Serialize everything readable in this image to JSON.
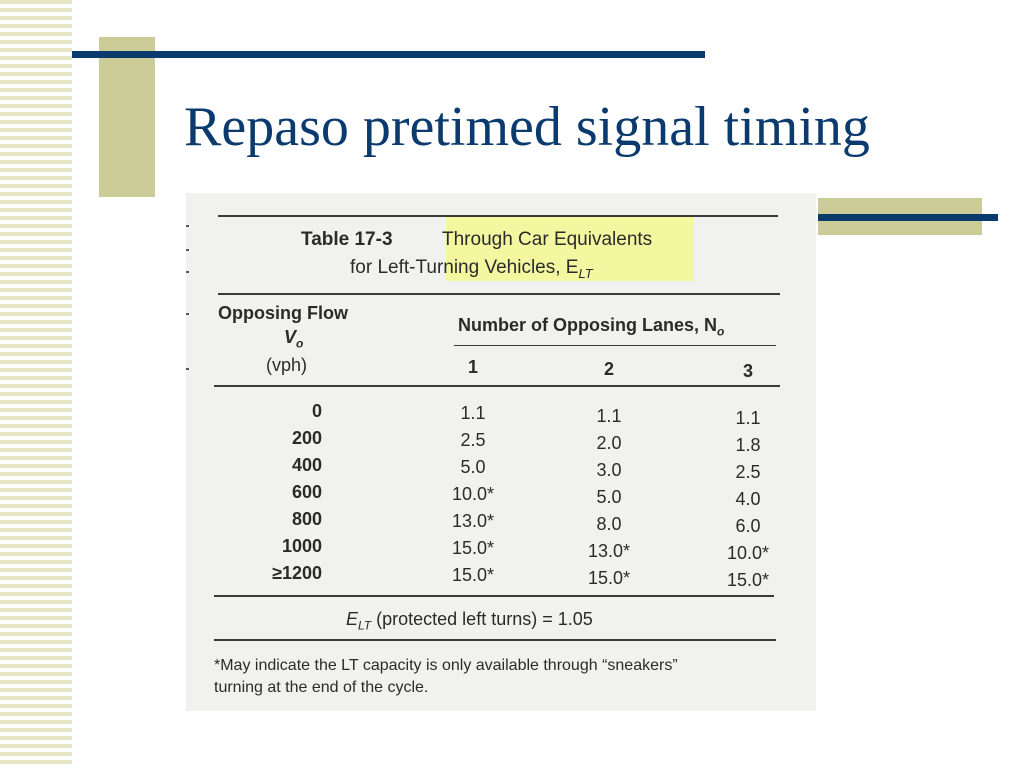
{
  "slide": {
    "title": "Repaso pretimed signal timing"
  },
  "table": {
    "number": "Table 17-3",
    "caption_line1": "Through Car Equivalents",
    "caption_line2": "for Left-Turning Vehicles, E",
    "caption_sub": "LT",
    "flow_header_line1": "Opposing Flow",
    "flow_header_line2": "V",
    "flow_header_sub": "o",
    "flow_header_line3": "(vph)",
    "lanes_header": "Number of Opposing Lanes, N",
    "lanes_header_sub": "o",
    "lane_columns": [
      "1",
      "2",
      "3"
    ],
    "rows": [
      {
        "flow": "0",
        "values": [
          "1.1",
          "1.1",
          "1.1"
        ]
      },
      {
        "flow": "200",
        "values": [
          "2.5",
          "2.0",
          "1.8"
        ]
      },
      {
        "flow": "400",
        "values": [
          "5.0",
          "3.0",
          "2.5"
        ]
      },
      {
        "flow": "600",
        "values": [
          "10.0*",
          "5.0",
          "4.0"
        ]
      },
      {
        "flow": "800",
        "values": [
          "13.0*",
          "8.0",
          "6.0"
        ]
      },
      {
        "flow": "1000",
        "values": [
          "15.0*",
          "13.0*",
          "10.0*"
        ]
      },
      {
        "flow": "≥1200",
        "values": [
          "15.0*",
          "15.0*",
          "15.0*"
        ]
      }
    ],
    "protected_prefix": "E",
    "protected_sub": "LT",
    "protected_text": " (protected left turns) = 1.05",
    "footnote_line1": "*May indicate the LT capacity is only available through “sneakers”",
    "footnote_line2": "turning at the end of the cycle."
  }
}
